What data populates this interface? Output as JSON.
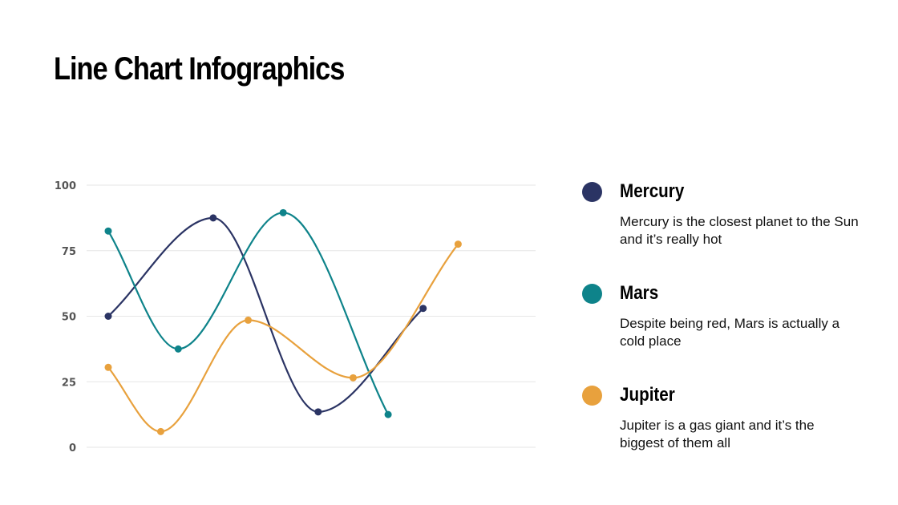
{
  "slide": {
    "title": "Line Chart Infographics"
  },
  "legend": [
    {
      "name": "Mercury",
      "description": "Mercury is the closest planet to the Sun and it’s really hot",
      "color": "#2b3464"
    },
    {
      "name": "Mars",
      "description": "Despite being red, Mars is actually a cold place",
      "color": "#0e838a"
    },
    {
      "name": "Jupiter",
      "description": "Jupiter is a gas giant and it’s the biggest of them all",
      "color": "#e8a13d"
    }
  ],
  "chart_data": {
    "type": "line",
    "ylim": [
      0,
      100
    ],
    "yticks": [
      0,
      25,
      50,
      75,
      100
    ],
    "grid": true,
    "series": [
      {
        "name": "Mercury",
        "color": "#2b3464",
        "x": [
          1,
          4,
          7,
          10
        ],
        "values": [
          50,
          87.5,
          13.5,
          53
        ]
      },
      {
        "name": "Mars",
        "color": "#0e838a",
        "x": [
          1,
          3,
          6,
          9
        ],
        "values": [
          82.5,
          37.5,
          89.5,
          12.5
        ]
      },
      {
        "name": "Jupiter",
        "color": "#e8a13d",
        "x": [
          1,
          2.5,
          5,
          8,
          11
        ],
        "values": [
          30.5,
          6,
          48.5,
          26.5,
          77.5
        ]
      }
    ]
  }
}
